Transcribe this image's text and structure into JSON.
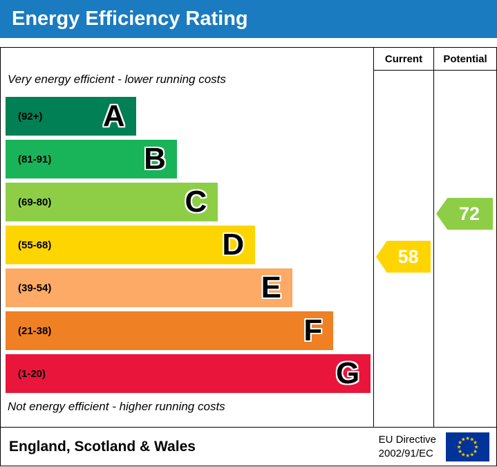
{
  "title": "Energy Efficiency Rating",
  "columns": {
    "current": "Current",
    "potential": "Potential"
  },
  "scale": {
    "top_note": "Very energy efficient - lower running costs",
    "bottom_note": "Not energy efficient - higher running costs",
    "bands": [
      {
        "letter": "A",
        "range": "(92+)",
        "color": "#008054",
        "width_pct": 35
      },
      {
        "letter": "B",
        "range": "(81-91)",
        "color": "#19b459",
        "width_pct": 46
      },
      {
        "letter": "C",
        "range": "(69-80)",
        "color": "#8dce46",
        "width_pct": 57
      },
      {
        "letter": "D",
        "range": "(55-68)",
        "color": "#ffd500",
        "width_pct": 67
      },
      {
        "letter": "E",
        "range": "(39-54)",
        "color": "#fcaa65",
        "width_pct": 77
      },
      {
        "letter": "F",
        "range": "(21-38)",
        "color": "#ef8023",
        "width_pct": 88
      },
      {
        "letter": "G",
        "range": "(1-20)",
        "color": "#e9153b",
        "width_pct": 98
      }
    ]
  },
  "ratings": {
    "current": {
      "value": "58",
      "band": "D",
      "color": "#ffd500"
    },
    "potential": {
      "value": "72",
      "band": "C",
      "color": "#8dce46"
    }
  },
  "footer": {
    "region": "England, Scotland & Wales",
    "directive_line1": "EU Directive",
    "directive_line2": "2002/91/EC",
    "flag_colors": {
      "background": "#003399",
      "stars": "#ffcc00"
    }
  },
  "theme": {
    "header_bg": "#1b7bc0",
    "header_text": "#ffffff",
    "border": "#000000"
  },
  "chart_data": {
    "type": "bar",
    "title": "Energy Efficiency Rating",
    "categories": [
      "A (92+)",
      "B (81-91)",
      "C (69-80)",
      "D (55-68)",
      "E (39-54)",
      "F (21-38)",
      "G (1-20)"
    ],
    "values": [
      35,
      46,
      57,
      67,
      77,
      88,
      98
    ],
    "values_note": "relative bar widths as % of rating column width",
    "colors": [
      "#008054",
      "#19b459",
      "#8dce46",
      "#ffd500",
      "#fcaa65",
      "#ef8023",
      "#e9153b"
    ],
    "markers": [
      {
        "name": "Current",
        "value": 58,
        "band": "D"
      },
      {
        "name": "Potential",
        "value": 72,
        "band": "C"
      }
    ],
    "annotations": [
      "Very energy efficient - lower running costs",
      "Not energy efficient - higher running costs"
    ],
    "legend_position": "none",
    "footer": "England, Scotland & Wales — EU Directive 2002/91/EC"
  }
}
